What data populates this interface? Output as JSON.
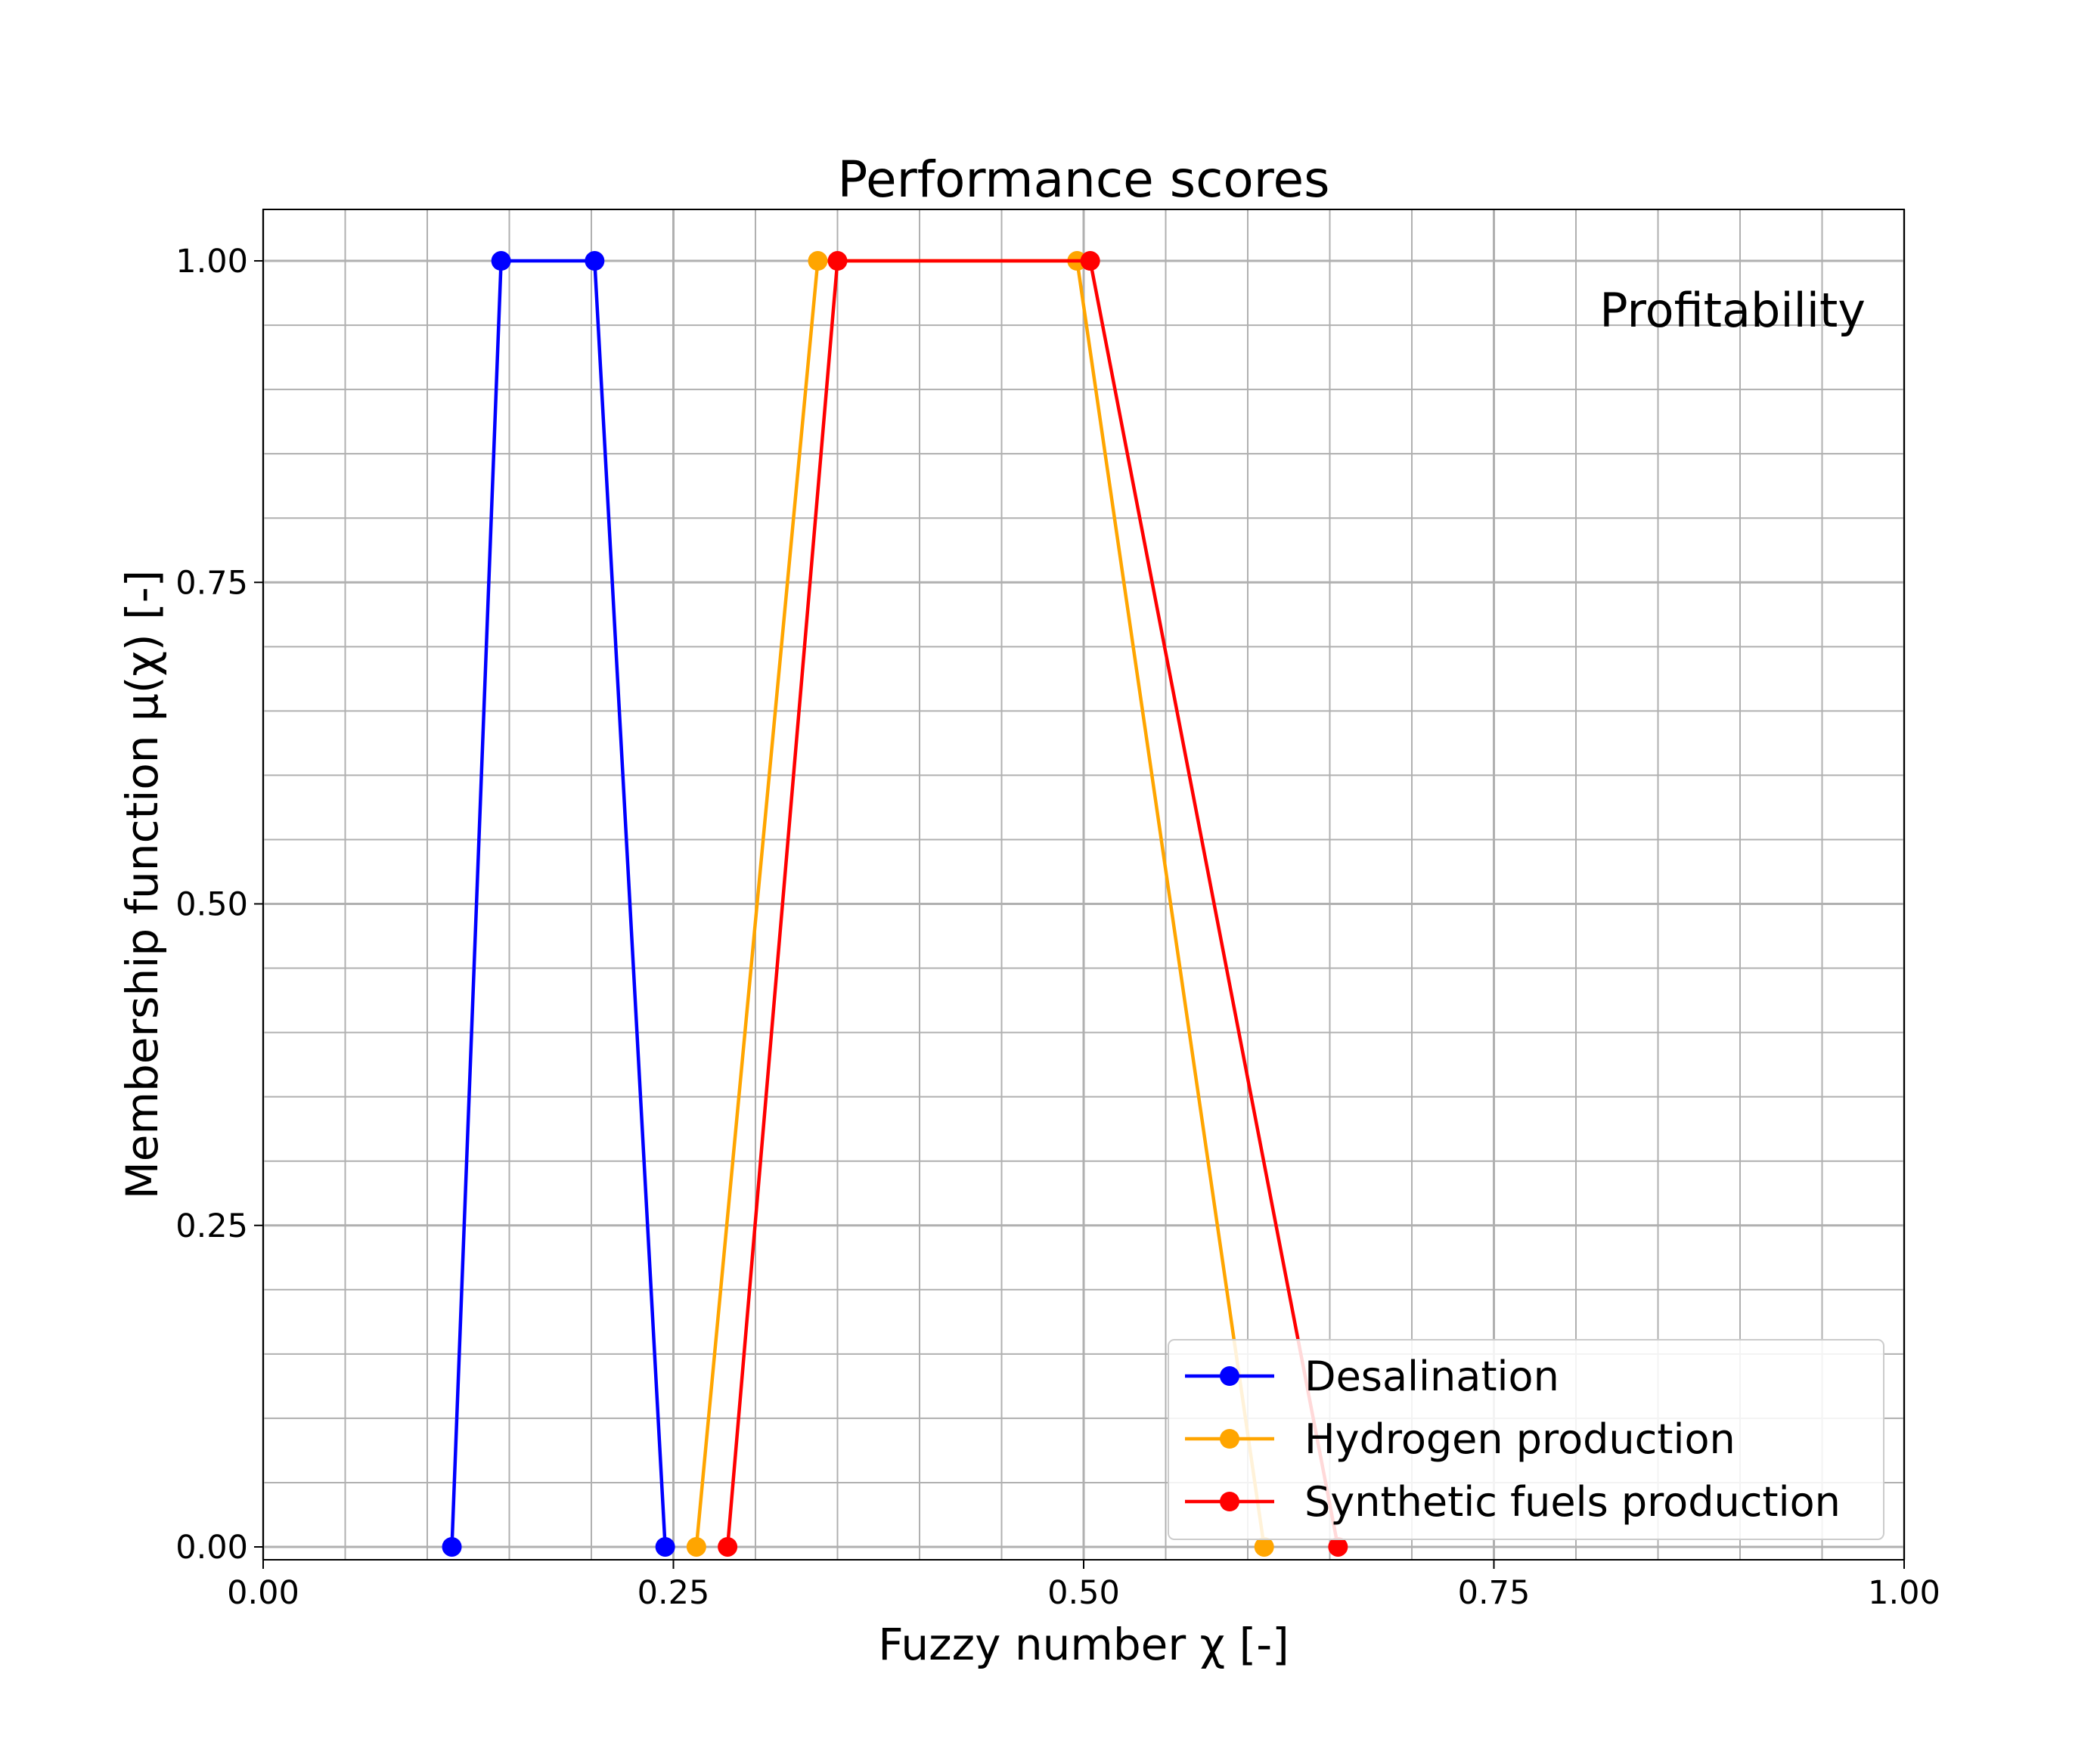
{
  "chart_data": {
    "type": "line",
    "title": "Performance scores",
    "xlabel": "Fuzzy number χ [-]",
    "ylabel": "Membership function μ(χ) [-]",
    "annotation": "Profitability",
    "xlim": [
      0,
      1
    ],
    "ylim": [
      -0.01,
      1.04
    ],
    "xticks": [
      0,
      0.25,
      0.5,
      0.75,
      1.0
    ],
    "xtick_labels": [
      "0.00",
      "0.25",
      "0.50",
      "0.75",
      "1.00"
    ],
    "yticks": [
      0,
      0.25,
      0.5,
      0.75,
      1.0
    ],
    "ytick_labels": [
      "0.00",
      "0.25",
      "0.50",
      "0.75",
      "1.00"
    ],
    "x_minor_grid_step": 0.05,
    "y_minor_grid_step": 0.05,
    "grid": true,
    "legend_position": "lower-right",
    "series": [
      {
        "name": "Desalination",
        "color": "#0000ff",
        "x": [
          0.115,
          0.145,
          0.202,
          0.245
        ],
        "y": [
          0,
          1,
          1,
          0
        ]
      },
      {
        "name": "Hydrogen production",
        "color": "#ffa500",
        "x": [
          0.264,
          0.338,
          0.496,
          0.61
        ],
        "y": [
          0,
          1,
          1,
          0
        ]
      },
      {
        "name": "Synthetic fuels production",
        "color": "#ff0000",
        "x": [
          0.283,
          0.35,
          0.504,
          0.655
        ],
        "y": [
          0,
          1,
          1,
          0
        ]
      }
    ]
  }
}
